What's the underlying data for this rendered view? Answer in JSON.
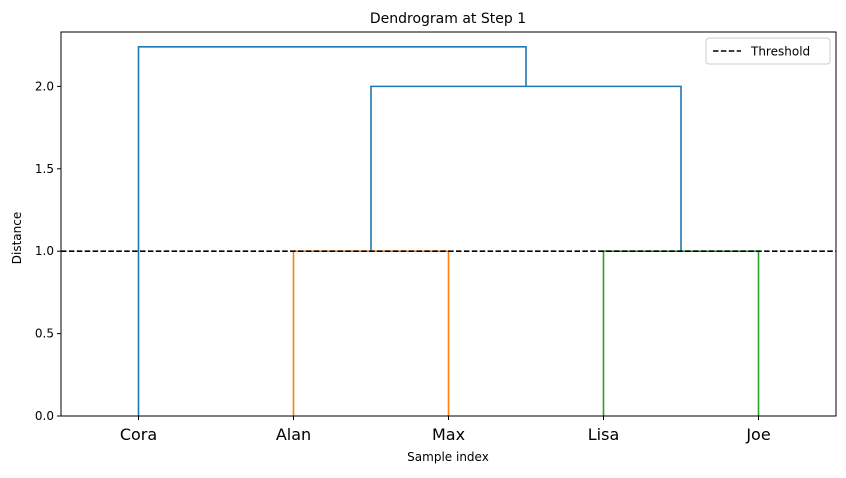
{
  "chart_data": {
    "type": "dendrogram",
    "title": "Dendrogram at Step 1",
    "xlabel": "Sample index",
    "ylabel": "Distance",
    "ylim": [
      0,
      2.33
    ],
    "yticks": [
      0.0,
      0.5,
      1.0,
      1.5,
      2.0
    ],
    "ytick_labels": [
      "0.0",
      "0.5",
      "1.0",
      "1.5",
      "2.0"
    ],
    "leaves": [
      "Cora",
      "Alan",
      "Max",
      "Lisa",
      "Joe"
    ],
    "threshold": 1.0,
    "legend": {
      "position": "top-right",
      "entries": [
        {
          "label": "Threshold",
          "style": "dashed",
          "color": "#000000"
        }
      ]
    },
    "links": [
      {
        "left": 1.5,
        "right": 2.5,
        "left_height": 0.0,
        "right_height": 0.0,
        "height": 1.0,
        "color": "#ff7f0e"
      },
      {
        "left": 3.5,
        "right": 4.5,
        "left_height": 0.0,
        "right_height": 0.0,
        "height": 1.0,
        "color": "#2ca02c"
      },
      {
        "left": 2.0,
        "right": 4.0,
        "left_height": 1.0,
        "right_height": 1.0,
        "height": 2.0,
        "color": "#1f77b4"
      },
      {
        "left": 0.5,
        "right": 3.0,
        "left_height": 0.0,
        "right_height": 2.0,
        "height": 2.24,
        "color": "#1f77b4"
      }
    ]
  }
}
